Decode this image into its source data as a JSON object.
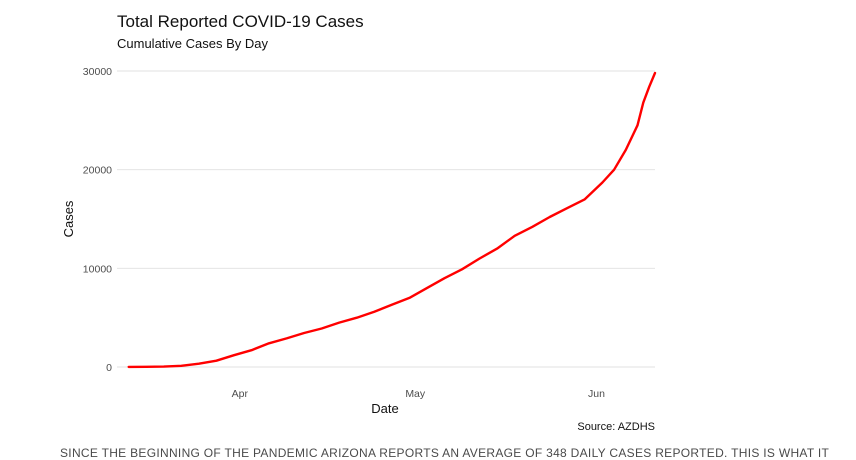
{
  "chart_data": {
    "type": "line",
    "title": "Total Reported COVID-19 Cases",
    "subtitle": "Cumulative Cases By Day",
    "xlabel": "Date",
    "ylabel": "Cases",
    "caption": "Source: AZDHS",
    "ylim": [
      0,
      30000
    ],
    "yticks": [
      0,
      10000,
      20000,
      30000
    ],
    "xlim": [
      "2020-03-11",
      "2020-06-11"
    ],
    "xticks": [
      {
        "date": "2020-04-01",
        "label": "Apr"
      },
      {
        "date": "2020-05-01",
        "label": "May"
      },
      {
        "date": "2020-06-01",
        "label": "Jun"
      }
    ],
    "grid": true,
    "series": [
      {
        "color": "#ff0000",
        "points": [
          [
            "2020-03-13",
            10
          ],
          [
            "2020-03-16",
            20
          ],
          [
            "2020-03-19",
            45
          ],
          [
            "2020-03-22",
            120
          ],
          [
            "2020-03-25",
            330
          ],
          [
            "2020-03-28",
            640
          ],
          [
            "2020-03-31",
            1200
          ],
          [
            "2020-04-03",
            1700
          ],
          [
            "2020-04-06",
            2400
          ],
          [
            "2020-04-09",
            2900
          ],
          [
            "2020-04-12",
            3450
          ],
          [
            "2020-04-15",
            3900
          ],
          [
            "2020-04-18",
            4500
          ],
          [
            "2020-04-21",
            5000
          ],
          [
            "2020-04-24",
            5600
          ],
          [
            "2020-04-27",
            6300
          ],
          [
            "2020-04-30",
            7000
          ],
          [
            "2020-05-03",
            8000
          ],
          [
            "2020-05-06",
            9000
          ],
          [
            "2020-05-09",
            9900
          ],
          [
            "2020-05-12",
            11000
          ],
          [
            "2020-05-15",
            12000
          ],
          [
            "2020-05-18",
            13300
          ],
          [
            "2020-05-21",
            14200
          ],
          [
            "2020-05-24",
            15200
          ],
          [
            "2020-05-27",
            16100
          ],
          [
            "2020-05-30",
            17000
          ],
          [
            "2020-06-02",
            18700
          ],
          [
            "2020-06-04",
            20000
          ],
          [
            "2020-06-06",
            22000
          ],
          [
            "2020-06-08",
            24500
          ],
          [
            "2020-06-09",
            26800
          ],
          [
            "2020-06-10",
            28400
          ],
          [
            "2020-06-11",
            29800
          ]
        ]
      }
    ]
  },
  "footer_text": "SINCE THE BEGINNING OF THE PANDEMIC ARIZONA REPORTS AN AVERAGE OF 348 DAILY CASES REPORTED. THIS IS WHAT IT"
}
